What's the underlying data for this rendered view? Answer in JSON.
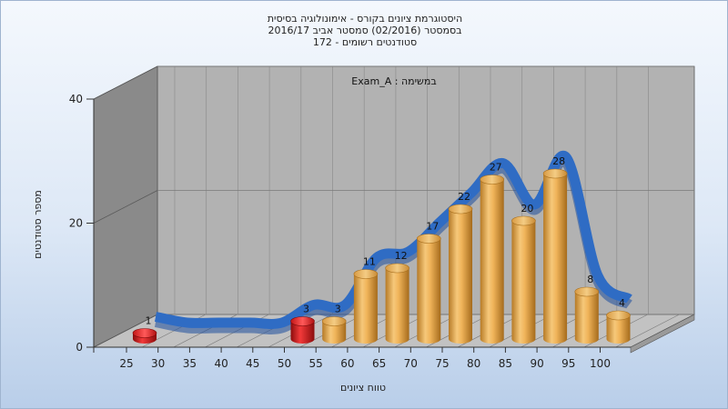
{
  "header": {
    "title_line1": "היסטוגרמת ציונים בקורס - אימונולוגיה בסיסית",
    "title_line2": "בסמסטר  (02/2016)  סמסטר אביב 2016/17",
    "title_line3": "סטודנטים רשומים - 172"
  },
  "colors": {
    "bar_normal": "#e8a849",
    "bar_fail": "#d41c1c",
    "curve": "#2f6cc4",
    "wall": "#8a8a8a",
    "floor": "#bdbdbd",
    "background_top": "#f4f8fd",
    "background_bottom": "#b9cee9"
  },
  "chart_data": {
    "type": "bar",
    "title": "היסטוגרמת ציונים בקורס - אימונולוגיה בסיסית",
    "annotation": "Exam_A : במשימה",
    "xlabel": "טווח ציונים",
    "ylabel": "מספר סטודנטים",
    "categories": [
      "25",
      "30",
      "35",
      "40",
      "45",
      "50",
      "55",
      "60",
      "65",
      "70",
      "75",
      "80",
      "85",
      "90",
      "95",
      "100"
    ],
    "values": [
      1,
      0,
      0,
      0,
      0,
      3,
      3,
      11,
      12,
      17,
      22,
      27,
      20,
      28,
      8,
      4
    ],
    "fail_categories": [
      "25",
      "50"
    ],
    "ylim": [
      0,
      40
    ],
    "yticks": [
      0,
      20,
      40
    ],
    "grid": true,
    "style": "3d-cylinder",
    "overlay": "blue distribution ribbon (approximate)"
  }
}
